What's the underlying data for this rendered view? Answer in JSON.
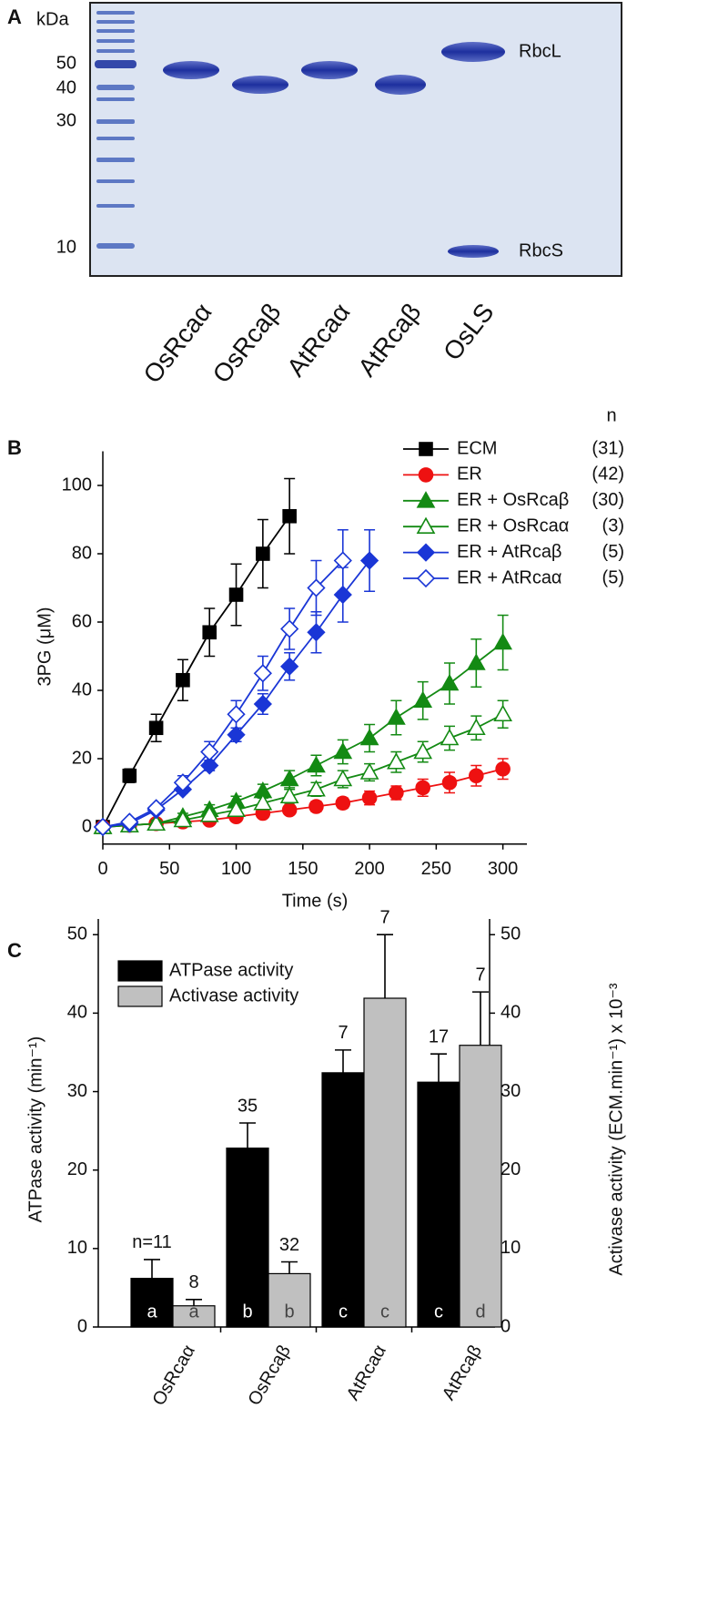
{
  "gel": {
    "panel": "A",
    "unit": "kDa",
    "markers": [
      "50",
      "40",
      "30",
      "10"
    ],
    "lanes": [
      "OsRcaα",
      "OsRcaβ",
      "AtRcaα",
      "AtRcaβ",
      "OsLS"
    ],
    "band_labels": [
      "RbcL",
      "RbcS"
    ]
  },
  "chart_data": [
    {
      "type": "line",
      "panel": "B",
      "xlabel": "Time (s)",
      "ylabel": "3PG (μM)",
      "xlim": [
        0,
        318
      ],
      "ylim": [
        -5,
        110
      ],
      "xticks": [
        0,
        50,
        100,
        150,
        200,
        250,
        300
      ],
      "yticks": [
        0,
        20,
        40,
        60,
        80,
        100
      ],
      "legend": "upper right",
      "legend_header": "n",
      "series": [
        {
          "name": "ECM",
          "n_label": "(31)",
          "color": "#000000",
          "marker": "square",
          "filled": true,
          "x": [
            0,
            20,
            40,
            60,
            80,
            100,
            120,
            140
          ],
          "values": [
            0,
            15,
            29,
            43,
            57,
            68,
            80,
            91
          ],
          "errors": [
            0,
            2,
            4,
            6,
            7,
            9,
            10,
            11
          ]
        },
        {
          "name": "ER",
          "n_label": "(42)",
          "color": "#ee1111",
          "marker": "circle",
          "filled": true,
          "x": [
            0,
            20,
            40,
            60,
            80,
            100,
            120,
            140,
            160,
            180,
            200,
            220,
            240,
            260,
            280,
            300
          ],
          "values": [
            0,
            0.5,
            1,
            1.5,
            2,
            3,
            4,
            5,
            6,
            7,
            8.5,
            10,
            11.5,
            13,
            15,
            17
          ],
          "errors": [
            0,
            1,
            1,
            1,
            1,
            1,
            1,
            1,
            1.5,
            1.5,
            2,
            2,
            2.5,
            3,
            3,
            3
          ]
        },
        {
          "name": "ER + OsRcaβ",
          "n_label": "(30)",
          "color": "#138a13",
          "marker": "triangle",
          "filled": true,
          "x": [
            0,
            20,
            40,
            60,
            80,
            100,
            120,
            140,
            160,
            180,
            200,
            220,
            240,
            260,
            280,
            300
          ],
          "values": [
            0,
            0.5,
            1,
            3,
            5,
            7.5,
            10.5,
            14,
            18,
            22,
            26,
            32,
            37,
            42,
            48,
            54
          ],
          "errors": [
            0,
            0.5,
            1,
            1,
            1.5,
            1.5,
            2,
            2.5,
            3,
            3.5,
            4,
            5,
            5.5,
            6,
            7,
            8
          ]
        },
        {
          "name": "ER + OsRcaα",
          "n_label": "(3)",
          "color": "#138a13",
          "marker": "triangle",
          "filled": false,
          "x": [
            0,
            20,
            40,
            60,
            80,
            100,
            120,
            140,
            160,
            180,
            200,
            220,
            240,
            260,
            280,
            300
          ],
          "values": [
            0,
            0.5,
            1,
            2,
            3.5,
            5,
            7,
            9,
            11,
            14,
            16,
            19,
            22,
            26,
            29,
            33
          ],
          "errors": [
            0,
            0.5,
            0.5,
            1,
            1,
            1.5,
            1.5,
            2,
            2,
            2.5,
            2.5,
            3,
            3,
            3.5,
            3.5,
            4
          ]
        },
        {
          "name": "ER + AtRcaβ",
          "n_label": "(5)",
          "color": "#1a36d6",
          "marker": "diamond",
          "filled": true,
          "x": [
            0,
            20,
            40,
            60,
            80,
            100,
            120,
            140,
            160,
            180,
            200
          ],
          "values": [
            0,
            1,
            5,
            11,
            18,
            27,
            36,
            47,
            57,
            68,
            78
          ],
          "errors": [
            0,
            0.5,
            1,
            1,
            1.5,
            2,
            3,
            4,
            6,
            8,
            9
          ]
        },
        {
          "name": "ER + AtRcaα",
          "n_label": "(5)",
          "color": "#1a36d6",
          "marker": "diamond",
          "filled": false,
          "x": [
            0,
            20,
            40,
            60,
            80,
            100,
            120,
            140,
            160,
            180
          ],
          "values": [
            0,
            1.5,
            5.5,
            13,
            22,
            33,
            45,
            58,
            70,
            78
          ],
          "errors": [
            0,
            0.5,
            1,
            2,
            3,
            4,
            5,
            6,
            8,
            9
          ]
        }
      ]
    },
    {
      "type": "bar",
      "panel": "C",
      "ylabel": "ATPase activity (min⁻¹)",
      "y2label": "Activase activity (ECM.min⁻¹) x 10⁻³",
      "categories": [
        "OsRcaα",
        "OsRcaβ",
        "AtRcaα",
        "AtRcaβ"
      ],
      "ylim": [
        0,
        52
      ],
      "yticks": [
        0,
        10,
        20,
        30,
        40,
        50
      ],
      "y2lim": [
        0,
        52
      ],
      "y2ticks": [
        0,
        10,
        20,
        30,
        40,
        50
      ],
      "legend": "upper left",
      "series": [
        {
          "name": "ATPase activity",
          "color": "#000000",
          "values": [
            6.2,
            22.8,
            32.4,
            31.2
          ],
          "errors": [
            2.4,
            3.2,
            2.9,
            3.6
          ],
          "n_labels": [
            "n=11",
            "35",
            "7",
            "17"
          ],
          "group_labels": [
            "a",
            "b",
            "c",
            "c"
          ]
        },
        {
          "name": "Activase activity",
          "color": "#c0c0c0",
          "axis": "y2",
          "values": [
            2.7,
            6.8,
            41.9,
            35.9
          ],
          "errors": [
            0.8,
            1.5,
            8.1,
            6.8
          ],
          "n_labels": [
            "8",
            "32",
            "7",
            "7"
          ],
          "group_labels": [
            "a",
            "b",
            "c",
            "d"
          ]
        }
      ]
    }
  ]
}
